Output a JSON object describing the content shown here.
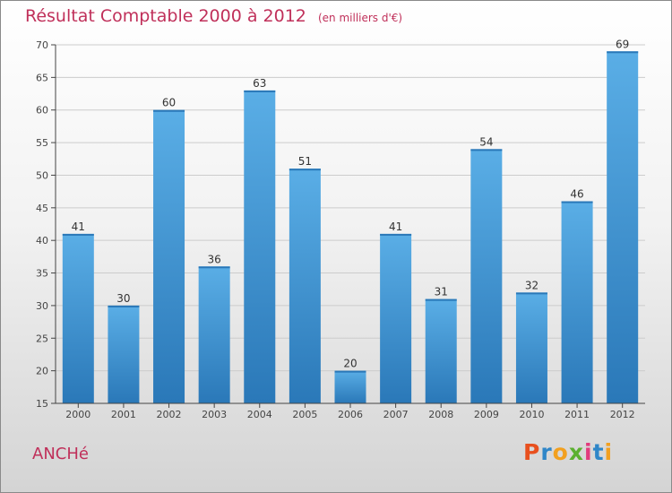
{
  "title": "Résultat Comptable 2000 à 2012",
  "subtitle": "(en milliers d'€)",
  "city": "ANCHé",
  "logo": {
    "letters": [
      "P",
      "r",
      "o",
      "x",
      "i",
      "t",
      "i"
    ],
    "colors": [
      "#e8501e",
      "#2f86c8",
      "#f2a01f",
      "#5bb030",
      "#e23b7d",
      "#2f86c8",
      "#f2a01f"
    ]
  },
  "colors": {
    "bar": "#4aa3e0",
    "bar_dark": "#2a78b8",
    "title": "#c0305a",
    "axis": "#444444",
    "grid": "#cccccc"
  },
  "chart_data": {
    "type": "bar",
    "title": "Résultat Comptable 2000 à 2012",
    "subtitle": "(en milliers d'€)",
    "categories": [
      "2000",
      "2001",
      "2002",
      "2003",
      "2004",
      "2005",
      "2006",
      "2007",
      "2008",
      "2009",
      "2010",
      "2011",
      "2012"
    ],
    "values": [
      41,
      30,
      60,
      36,
      63,
      51,
      20,
      41,
      31,
      54,
      32,
      46,
      69
    ],
    "ylim": [
      15,
      70
    ],
    "yticks": [
      15,
      20,
      25,
      30,
      35,
      40,
      45,
      50,
      55,
      60,
      65,
      70
    ],
    "xlabel": "",
    "ylabel": "",
    "grid": true
  }
}
